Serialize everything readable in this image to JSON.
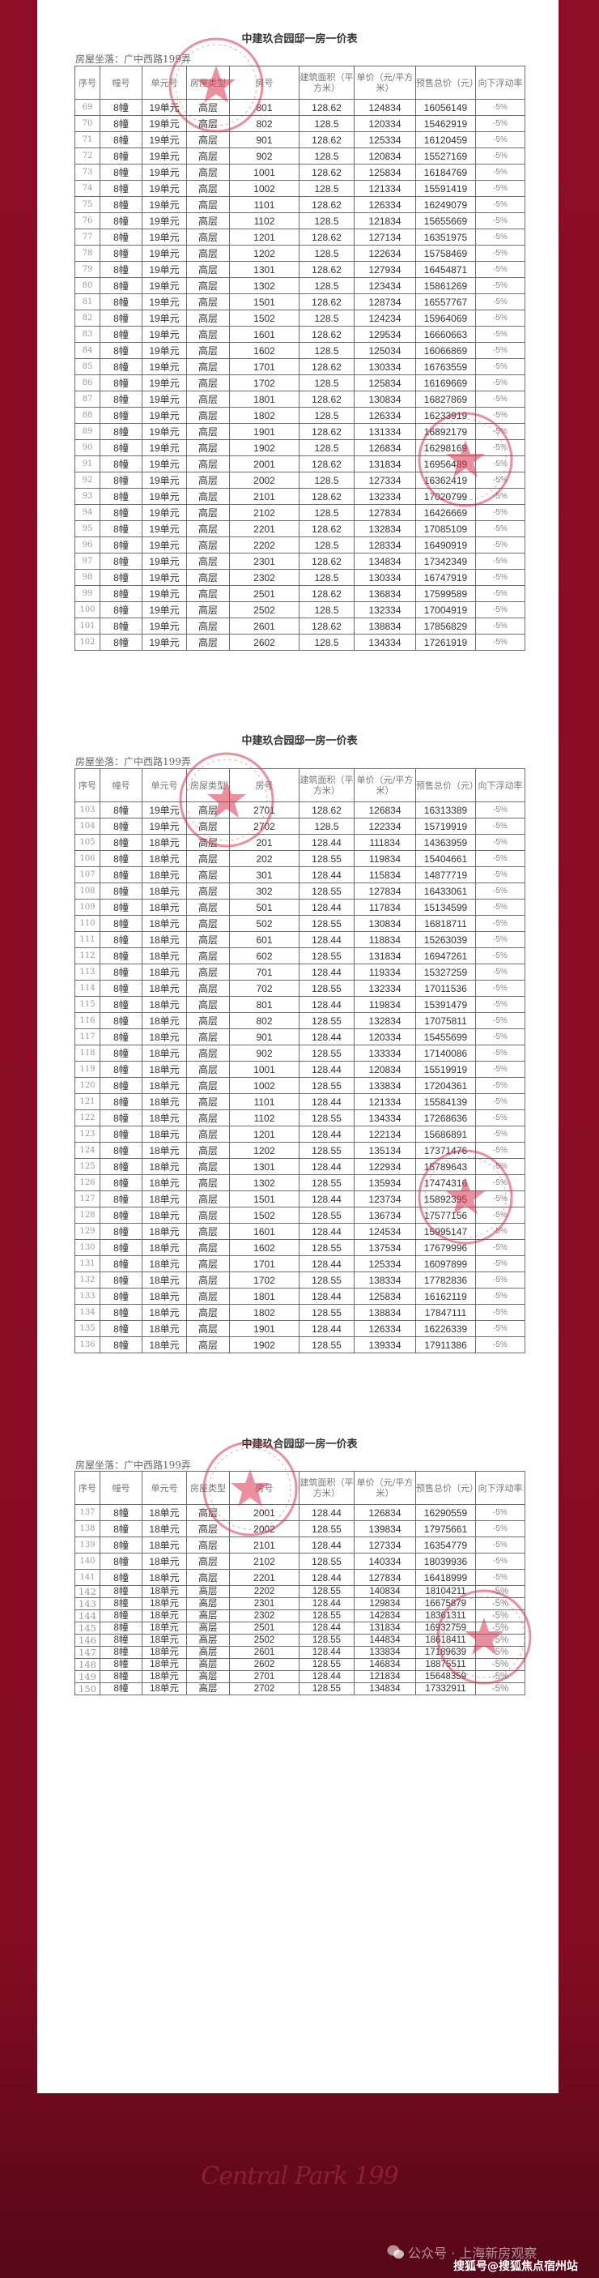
{
  "document": {
    "title": "中建玖合园邸一房一价表",
    "location": "房屋坐落：广中西路199弄",
    "headers": [
      "序号",
      "幢号",
      "单元号",
      "房屋类型",
      "房号",
      "建筑面积（平方米）",
      "单价（元/平方米）",
      "预售总价（元）",
      "向下浮动率"
    ]
  },
  "colors": {
    "background": "#8c0d24",
    "stamp": "#d9344f"
  },
  "pages": [
    {
      "rows": [
        [
          "69",
          "8幢",
          "19单元",
          "高层",
          "801",
          "128.62",
          "124834",
          "16056149",
          "-5%"
        ],
        [
          "70",
          "8幢",
          "19单元",
          "高层",
          "802",
          "128.5",
          "120334",
          "15462919",
          "-5%"
        ],
        [
          "71",
          "8幢",
          "19单元",
          "高层",
          "901",
          "128.62",
          "125334",
          "16120459",
          "-5%"
        ],
        [
          "72",
          "8幢",
          "19单元",
          "高层",
          "902",
          "128.5",
          "120834",
          "15527169",
          "-5%"
        ],
        [
          "73",
          "8幢",
          "19单元",
          "高层",
          "1001",
          "128.62",
          "125834",
          "16184769",
          "-5%"
        ],
        [
          "74",
          "8幢",
          "19单元",
          "高层",
          "1002",
          "128.5",
          "121334",
          "15591419",
          "-5%"
        ],
        [
          "75",
          "8幢",
          "19单元",
          "高层",
          "1101",
          "128.62",
          "126334",
          "16249079",
          "-5%"
        ],
        [
          "76",
          "8幢",
          "19单元",
          "高层",
          "1102",
          "128.5",
          "121834",
          "15655669",
          "-5%"
        ],
        [
          "77",
          "8幢",
          "19单元",
          "高层",
          "1201",
          "128.62",
          "127134",
          "16351975",
          "-5%"
        ],
        [
          "78",
          "8幢",
          "19单元",
          "高层",
          "1202",
          "128.5",
          "122634",
          "15758469",
          "-5%"
        ],
        [
          "79",
          "8幢",
          "19单元",
          "高层",
          "1301",
          "128.62",
          "127934",
          "16454871",
          "-5%"
        ],
        [
          "80",
          "8幢",
          "19单元",
          "高层",
          "1302",
          "128.5",
          "123434",
          "15861269",
          "-5%"
        ],
        [
          "81",
          "8幢",
          "19单元",
          "高层",
          "1501",
          "128.62",
          "128734",
          "16557767",
          "-5%"
        ],
        [
          "82",
          "8幢",
          "19单元",
          "高层",
          "1502",
          "128.5",
          "124234",
          "15964069",
          "-5%"
        ],
        [
          "83",
          "8幢",
          "19单元",
          "高层",
          "1601",
          "128.62",
          "129534",
          "16660663",
          "-5%"
        ],
        [
          "84",
          "8幢",
          "19单元",
          "高层",
          "1602",
          "128.5",
          "125034",
          "16066869",
          "-5%"
        ],
        [
          "85",
          "8幢",
          "19单元",
          "高层",
          "1701",
          "128.62",
          "130334",
          "16763559",
          "-5%"
        ],
        [
          "86",
          "8幢",
          "19单元",
          "高层",
          "1702",
          "128.5",
          "125834",
          "16169669",
          "-5%"
        ],
        [
          "87",
          "8幢",
          "19单元",
          "高层",
          "1801",
          "128.62",
          "130834",
          "16827869",
          "-5%"
        ],
        [
          "88",
          "8幢",
          "19单元",
          "高层",
          "1802",
          "128.5",
          "126334",
          "16233919",
          "-5%"
        ],
        [
          "89",
          "8幢",
          "19单元",
          "高层",
          "1901",
          "128.62",
          "131334",
          "16892179",
          "-5%"
        ],
        [
          "90",
          "8幢",
          "19单元",
          "高层",
          "1902",
          "128.5",
          "126834",
          "16298169",
          "-5%"
        ],
        [
          "91",
          "8幢",
          "19单元",
          "高层",
          "2001",
          "128.62",
          "131834",
          "16956489",
          "-5%"
        ],
        [
          "92",
          "8幢",
          "19单元",
          "高层",
          "2002",
          "128.5",
          "127334",
          "16362419",
          "-5%"
        ],
        [
          "93",
          "8幢",
          "19单元",
          "高层",
          "2101",
          "128.62",
          "132334",
          "17020799",
          "-5%"
        ],
        [
          "94",
          "8幢",
          "19单元",
          "高层",
          "2102",
          "128.5",
          "127834",
          "16426669",
          "-5%"
        ],
        [
          "95",
          "8幢",
          "19单元",
          "高层",
          "2201",
          "128.62",
          "132834",
          "17085109",
          "-5%"
        ],
        [
          "96",
          "8幢",
          "19单元",
          "高层",
          "2202",
          "128.5",
          "128334",
          "16490919",
          "-5%"
        ],
        [
          "97",
          "8幢",
          "19单元",
          "高层",
          "2301",
          "128.62",
          "134834",
          "17342349",
          "-5%"
        ],
        [
          "98",
          "8幢",
          "19单元",
          "高层",
          "2302",
          "128.5",
          "130334",
          "16747919",
          "-5%"
        ],
        [
          "99",
          "8幢",
          "19单元",
          "高层",
          "2501",
          "128.62",
          "136834",
          "17599589",
          "-5%"
        ],
        [
          "100",
          "8幢",
          "19单元",
          "高层",
          "2502",
          "128.5",
          "132334",
          "17004919",
          "-5%"
        ],
        [
          "101",
          "8幢",
          "19单元",
          "高层",
          "2601",
          "128.62",
          "138834",
          "17856829",
          "-5%"
        ],
        [
          "102",
          "8幢",
          "19单元",
          "高层",
          "2602",
          "128.5",
          "134334",
          "17261919",
          "-5%"
        ]
      ]
    },
    {
      "rows": [
        [
          "103",
          "8幢",
          "19单元",
          "高层",
          "2701",
          "128.62",
          "126834",
          "16313389",
          "-5%"
        ],
        [
          "104",
          "8幢",
          "19单元",
          "高层",
          "2702",
          "128.5",
          "122334",
          "15719919",
          "-5%"
        ],
        [
          "105",
          "8幢",
          "18单元",
          "高层",
          "201",
          "128.44",
          "111834",
          "14363959",
          "-5%"
        ],
        [
          "106",
          "8幢",
          "18单元",
          "高层",
          "202",
          "128.55",
          "119834",
          "15404661",
          "-5%"
        ],
        [
          "107",
          "8幢",
          "18单元",
          "高层",
          "301",
          "128.44",
          "115834",
          "14877719",
          "-5%"
        ],
        [
          "108",
          "8幢",
          "18单元",
          "高层",
          "302",
          "128.55",
          "127834",
          "16433061",
          "-5%"
        ],
        [
          "109",
          "8幢",
          "18单元",
          "高层",
          "501",
          "128.44",
          "117834",
          "15134599",
          "-5%"
        ],
        [
          "110",
          "8幢",
          "18单元",
          "高层",
          "502",
          "128.55",
          "130834",
          "16818711",
          "-5%"
        ],
        [
          "111",
          "8幢",
          "18单元",
          "高层",
          "601",
          "128.44",
          "118834",
          "15263039",
          "-5%"
        ],
        [
          "112",
          "8幢",
          "18单元",
          "高层",
          "602",
          "128.55",
          "131834",
          "16947261",
          "-5%"
        ],
        [
          "113",
          "8幢",
          "18单元",
          "高层",
          "701",
          "128.44",
          "119334",
          "15327259",
          "-5%"
        ],
        [
          "114",
          "8幢",
          "18单元",
          "高层",
          "702",
          "128.55",
          "132334",
          "17011536",
          "-5%"
        ],
        [
          "115",
          "8幢",
          "18单元",
          "高层",
          "801",
          "128.44",
          "119834",
          "15391479",
          "-5%"
        ],
        [
          "116",
          "8幢",
          "18单元",
          "高层",
          "802",
          "128.55",
          "132834",
          "17075811",
          "-5%"
        ],
        [
          "117",
          "8幢",
          "18单元",
          "高层",
          "901",
          "128.44",
          "120334",
          "15455699",
          "-5%"
        ],
        [
          "118",
          "8幢",
          "18单元",
          "高层",
          "902",
          "128.55",
          "133334",
          "17140086",
          "-5%"
        ],
        [
          "119",
          "8幢",
          "18单元",
          "高层",
          "1001",
          "128.44",
          "120834",
          "15519919",
          "-5%"
        ],
        [
          "120",
          "8幢",
          "18单元",
          "高层",
          "1002",
          "128.55",
          "133834",
          "17204361",
          "-5%"
        ],
        [
          "121",
          "8幢",
          "18单元",
          "高层",
          "1101",
          "128.44",
          "121334",
          "15584139",
          "-5%"
        ],
        [
          "122",
          "8幢",
          "18单元",
          "高层",
          "1102",
          "128.55",
          "134334",
          "17268636",
          "-5%"
        ],
        [
          "123",
          "8幢",
          "18单元",
          "高层",
          "1201",
          "128.44",
          "122134",
          "15686891",
          "-5%"
        ],
        [
          "124",
          "8幢",
          "18单元",
          "高层",
          "1202",
          "128.55",
          "135134",
          "17371476",
          "-5%"
        ],
        [
          "125",
          "8幢",
          "18单元",
          "高层",
          "1301",
          "128.44",
          "122934",
          "15789643",
          "-5%"
        ],
        [
          "126",
          "8幢",
          "18单元",
          "高层",
          "1302",
          "128.55",
          "135934",
          "17474316",
          "-5%"
        ],
        [
          "127",
          "8幢",
          "18单元",
          "高层",
          "1501",
          "128.44",
          "123734",
          "15892395",
          "-5%"
        ],
        [
          "128",
          "8幢",
          "18单元",
          "高层",
          "1502",
          "128.55",
          "136734",
          "17577156",
          "-5%"
        ],
        [
          "129",
          "8幢",
          "18单元",
          "高层",
          "1601",
          "128.44",
          "124534",
          "15995147",
          "-5%"
        ],
        [
          "130",
          "8幢",
          "18单元",
          "高层",
          "1602",
          "128.55",
          "137534",
          "17679996",
          "-5%"
        ],
        [
          "131",
          "8幢",
          "18单元",
          "高层",
          "1701",
          "128.44",
          "125334",
          "16097899",
          "-5%"
        ],
        [
          "132",
          "8幢",
          "18单元",
          "高层",
          "1702",
          "128.55",
          "138334",
          "17782836",
          "-5%"
        ],
        [
          "133",
          "8幢",
          "18单元",
          "高层",
          "1801",
          "128.44",
          "125834",
          "16162119",
          "-5%"
        ],
        [
          "134",
          "8幢",
          "18单元",
          "高层",
          "1802",
          "128.55",
          "138834",
          "17847111",
          "-5%"
        ],
        [
          "135",
          "8幢",
          "18单元",
          "高层",
          "1901",
          "128.44",
          "126334",
          "16226339",
          "-5%"
        ],
        [
          "136",
          "8幢",
          "18单元",
          "高层",
          "1902",
          "128.55",
          "139334",
          "17911386",
          "-5%"
        ]
      ]
    },
    {
      "rows": [
        [
          "137",
          "8幢",
          "18单元",
          "高层",
          "2001",
          "128.44",
          "126834",
          "16290559",
          "-5%"
        ],
        [
          "138",
          "8幢",
          "18单元",
          "高层",
          "2002",
          "128.55",
          "139834",
          "17975661",
          "-5%"
        ],
        [
          "139",
          "8幢",
          "18单元",
          "高层",
          "2101",
          "128.44",
          "127334",
          "16354779",
          "-5%"
        ],
        [
          "140",
          "8幢",
          "18单元",
          "高层",
          "2102",
          "128.55",
          "140334",
          "18039936",
          "-5%"
        ],
        [
          "141",
          "8幢",
          "18单元",
          "高层",
          "2201",
          "128.44",
          "127834",
          "16418999",
          "-5%"
        ],
        [
          "142",
          "8幢",
          "18单元",
          "高层",
          "2202",
          "128.55",
          "140834",
          "18104211",
          "-5%"
        ],
        [
          "143",
          "8幢",
          "18单元",
          "高层",
          "2301",
          "128.44",
          "129834",
          "16675879",
          "-5%"
        ],
        [
          "144",
          "8幢",
          "18单元",
          "高层",
          "2302",
          "128.55",
          "142834",
          "18361311",
          "-5%"
        ],
        [
          "145",
          "8幢",
          "18单元",
          "高层",
          "2501",
          "128.44",
          "131834",
          "16932759",
          "-5%"
        ],
        [
          "146",
          "8幢",
          "18单元",
          "高层",
          "2502",
          "128.55",
          "144834",
          "18618411",
          "-5%"
        ],
        [
          "147",
          "8幢",
          "18单元",
          "高层",
          "2601",
          "128.44",
          "133834",
          "17189639",
          "-5%"
        ],
        [
          "148",
          "8幢",
          "18单元",
          "高层",
          "2602",
          "128.55",
          "146834",
          "18875511",
          "-5%"
        ],
        [
          "149",
          "8幢",
          "18单元",
          "高层",
          "2701",
          "128.44",
          "121834",
          "15648359",
          "-5%"
        ],
        [
          "150",
          "8幢",
          "18单元",
          "高层",
          "2702",
          "128.55",
          "134834",
          "17332911",
          "-5%"
        ]
      ]
    }
  ],
  "footer": {
    "brand_script": "Central Park 199",
    "watermark_wechat": "公众号 · 上海新房观察",
    "watermark_sohu": "搜狐号@搜狐焦点宿州站",
    "wechat_icon": "wechat-icon"
  }
}
